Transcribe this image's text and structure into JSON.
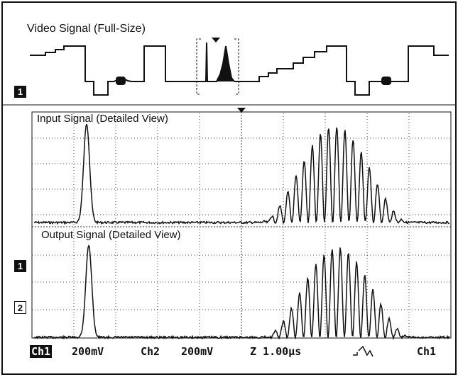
{
  "top_label": "Video Signal (Full-Size)",
  "input_label": "Input Signal (Detailed View)",
  "output_label": "Output Signal (Detailed View)",
  "markers": {
    "ch1_top": "1",
    "ch1_bottom": "1",
    "ch2": "2"
  },
  "status_bar": {
    "ch1": "Ch1",
    "ch1_scale": "200mV",
    "ch2": "Ch2",
    "ch2_scale": "200mV",
    "timebase": "Z 1.00µs",
    "trigger_source": "Ch1"
  },
  "colors": {
    "trace": "#111111",
    "grid": "#555555",
    "background": "#ffffff"
  }
}
